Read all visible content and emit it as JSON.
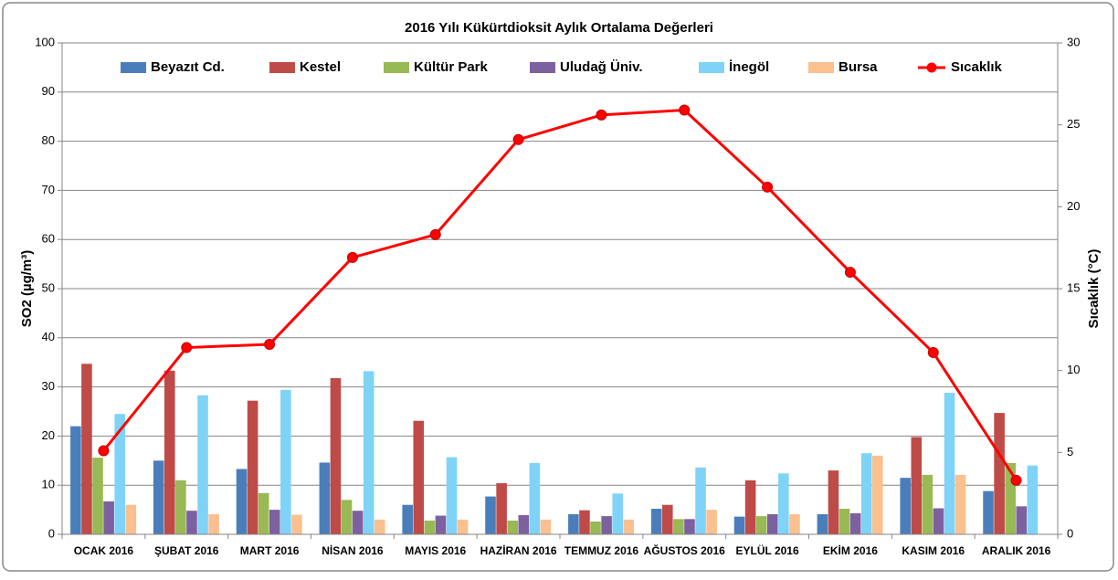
{
  "chart_data": {
    "type": "bar-line",
    "title": "2016 Yılı Kükürtdioksit Aylık Ortalama Değerleri",
    "ylabel": "SO2 (µg/m³)",
    "y2label": "Sıcaklık (°C)",
    "categories": [
      "OCAK 2016",
      "ŞUBAT 2016",
      "MART 2016",
      "NİSAN 2016",
      "MAYIS 2016",
      "HAZİRAN 2016",
      "TEMMUZ 2016",
      "AĞUSTOS 2016",
      "EYLÜL 2016",
      "EKİM 2016",
      "KASIM 2016",
      "ARALIK 2016"
    ],
    "series": [
      {
        "name": "Beyazıt Cd.",
        "color": "#4a7ebb",
        "values": [
          22,
          15,
          13.3,
          14.6,
          6,
          7.7,
          4.1,
          5.2,
          3.6,
          4.1,
          11.5,
          8.8
        ]
      },
      {
        "name": "Kestel",
        "color": "#be4b48",
        "values": [
          34.7,
          33.3,
          27.2,
          31.8,
          23.1,
          10.4,
          4.9,
          6,
          11,
          13,
          19.8,
          24.7
        ]
      },
      {
        "name": "Kültür Park",
        "color": "#98b954",
        "values": [
          15.6,
          11,
          8.4,
          7,
          2.8,
          2.8,
          2.6,
          3.1,
          3.7,
          5.2,
          12.1,
          14.5
        ]
      },
      {
        "name": "Uludağ Üniv.",
        "color": "#7d60a0",
        "values": [
          6.7,
          4.8,
          5,
          4.8,
          3.8,
          3.9,
          3.7,
          3.1,
          4.1,
          4.3,
          5.3,
          5.7
        ]
      },
      {
        "name": "İnegöl",
        "color": "#7fd3f7",
        "values": [
          24.5,
          28.3,
          29.4,
          33.2,
          15.7,
          14.5,
          8.3,
          13.6,
          12.4,
          16.5,
          28.8,
          14
        ]
      },
      {
        "name": "Bursa",
        "color": "#fac090",
        "values": [
          6,
          4.1,
          4,
          3,
          3,
          3,
          3,
          5,
          4.1,
          16,
          12.1,
          null
        ]
      },
      {
        "name": "Sıcaklık",
        "color": "#ff0000",
        "axis": "y2",
        "values": [
          5.1,
          11.4,
          11.6,
          16.9,
          18.3,
          24.1,
          25.6,
          25.9,
          21.2,
          16,
          11.1,
          3.3
        ]
      }
    ],
    "ylim": [
      0,
      100
    ],
    "yticks": [
      0,
      10,
      20,
      30,
      40,
      50,
      60,
      70,
      80,
      90,
      100
    ],
    "y2lim": [
      0,
      30
    ],
    "y2ticks": [
      0,
      5,
      10,
      15,
      20,
      25,
      30
    ],
    "grid": true,
    "legend": "top"
  }
}
